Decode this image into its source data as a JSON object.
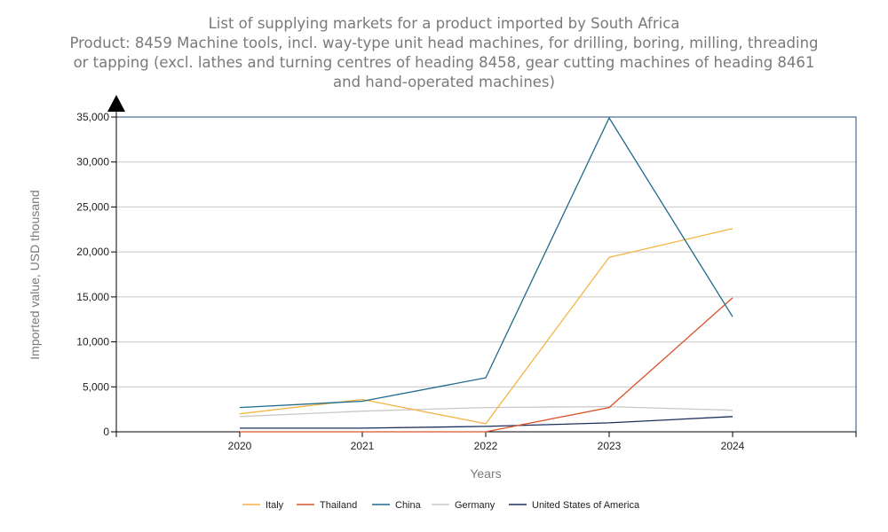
{
  "chart_data": {
    "type": "line",
    "title_lines": [
      "List of supplying markets for a product imported by South Africa",
      "Product: 8459 Machine tools, incl. way-type unit head machines, for drilling, boring, milling, threading",
      "or tapping (excl. lathes and turning centres of heading 8458, gear cutting machines of heading 8461",
      "and hand-operated machines)"
    ],
    "xlabel": "Years",
    "ylabel": "Imported value, USD thousand",
    "x": [
      "2020",
      "2021",
      "2022",
      "2023",
      "2024"
    ],
    "ylim": [
      0,
      35000
    ],
    "yticks": [
      0,
      5000,
      10000,
      15000,
      20000,
      25000,
      30000,
      35000
    ],
    "ytick_labels": [
      "0",
      "5,000",
      "10,000",
      "15,000",
      "20,000",
      "25,000",
      "30,000",
      "35,000"
    ],
    "grid": true,
    "legend_position": "bottom",
    "series": [
      {
        "name": "Italy",
        "color": "#f5b445",
        "values": [
          2000,
          3600,
          900,
          19400,
          22600
        ]
      },
      {
        "name": "Thailand",
        "color": "#d9532b",
        "values": [
          0,
          0,
          0,
          2700,
          14900
        ]
      },
      {
        "name": "China",
        "color": "#1f6a8a",
        "values": [
          2700,
          3400,
          6000,
          34900,
          12800
        ]
      },
      {
        "name": "Germany",
        "color": "#c8c8c8",
        "values": [
          1700,
          2300,
          2700,
          2800,
          2400
        ]
      },
      {
        "name": "United States of America",
        "color": "#1b2f5e",
        "values": [
          400,
          400,
          600,
          1000,
          1700
        ]
      }
    ]
  }
}
